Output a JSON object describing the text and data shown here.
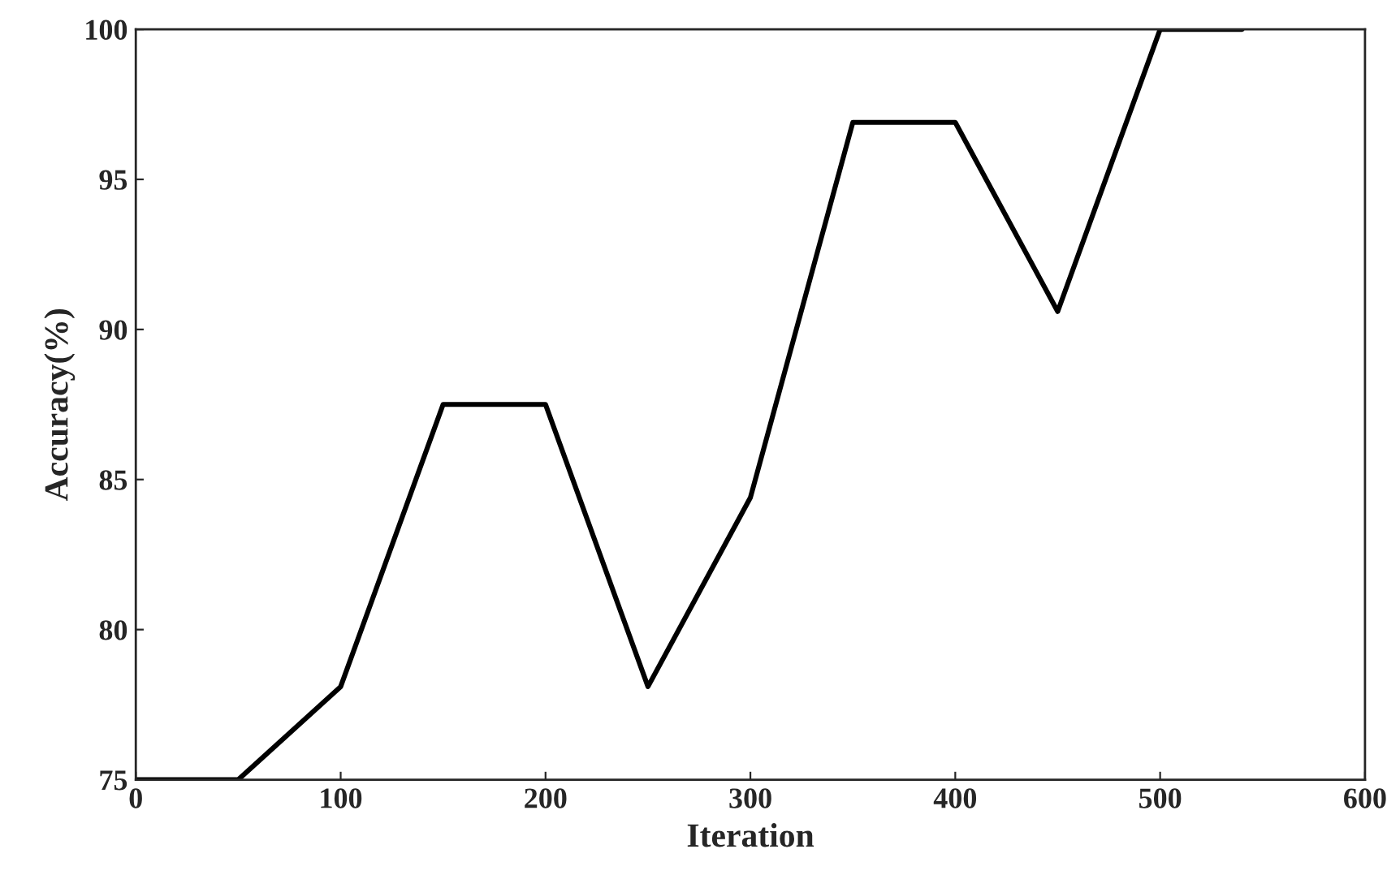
{
  "chart_data": {
    "type": "line",
    "xlabel": "Iteration",
    "ylabel": "Accuracy(%)",
    "x": [
      0,
      50,
      100,
      150,
      200,
      250,
      300,
      350,
      400,
      450,
      500,
      540
    ],
    "series": [
      {
        "color": "#000000",
        "values": [
          75,
          75,
          78.1,
          87.5,
          87.5,
          78.1,
          84.4,
          96.9,
          96.9,
          90.6,
          100,
          100
        ]
      }
    ],
    "xlim": [
      0,
      600
    ],
    "xticks": [
      0,
      100,
      200,
      300,
      400,
      500,
      600
    ],
    "ylim": [
      75,
      100
    ],
    "yticks": [
      75,
      80,
      85,
      90,
      95,
      100
    ],
    "grid": false,
    "marker": "none",
    "line_style": "solid"
  }
}
